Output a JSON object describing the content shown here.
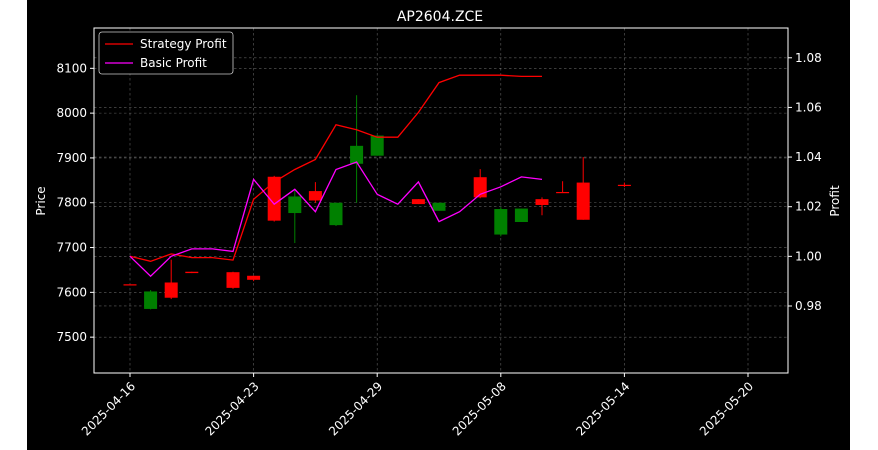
{
  "chart_data": {
    "type": "candlestick",
    "title": "AP2604.ZCE",
    "xlabel": "",
    "ylabel_left": "Price",
    "ylabel_right": "Profit",
    "ylim_left": [
      7420,
      8190
    ],
    "ylim_right": [
      0.953,
      1.092
    ],
    "yticks_left": [
      7500,
      7600,
      7700,
      7800,
      7900,
      8000,
      8100
    ],
    "yticks_right": [
      0.98,
      1.0,
      1.02,
      1.04,
      1.06,
      1.08
    ],
    "xticks": [
      {
        "index": 0,
        "label": "2025-04-16"
      },
      {
        "index": 6,
        "label": "2025-04-23"
      },
      {
        "index": 12,
        "label": "2025-04-29"
      },
      {
        "index": 18,
        "label": "2025-05-08"
      },
      {
        "index": 24,
        "label": "2025-05-14"
      },
      {
        "index": 30,
        "label": "2025-05-20"
      }
    ],
    "grid": true,
    "legend_position": "top-left",
    "up_color": "#ff0000",
    "down_color": "#008000",
    "candles": [
      {
        "o": 7618,
        "h": 7618,
        "l": 7618,
        "c": 7618
      },
      {
        "o": 7602,
        "h": 7605,
        "l": 7562,
        "c": 7563
      },
      {
        "o": 7588,
        "h": 7673,
        "l": 7585,
        "c": 7622
      },
      {
        "o": 7643,
        "h": 7646,
        "l": 7643,
        "c": 7646
      },
      {
        "o": 7610,
        "h": 7646,
        "l": 7608,
        "c": 7645
      },
      {
        "o": 7628,
        "h": 7637,
        "l": 7625,
        "c": 7637
      },
      {
        "o": 7760,
        "h": 7860,
        "l": 7758,
        "c": 7858
      },
      {
        "o": 7814,
        "h": 7830,
        "l": 7710,
        "c": 7777
      },
      {
        "o": 7805,
        "h": 7846,
        "l": 7800,
        "c": 7826
      },
      {
        "o": 7800,
        "h": 7800,
        "l": 7748,
        "c": 7750
      },
      {
        "o": 7927,
        "h": 8040,
        "l": 7800,
        "c": 7887
      },
      {
        "o": 7950,
        "h": 7950,
        "l": 7905,
        "c": 7905
      },
      {
        "o": 7797,
        "h": 7808,
        "l": 7797,
        "c": 7808
      },
      {
        "o": 7800,
        "h": 7800,
        "l": 7782,
        "c": 7782
      },
      {
        "o": 7812,
        "h": 7875,
        "l": 7810,
        "c": 7857
      },
      {
        "o": 7786,
        "h": 7790,
        "l": 7725,
        "c": 7729
      },
      {
        "o": 7787,
        "h": 7787,
        "l": 7757,
        "c": 7757
      },
      {
        "o": 7795,
        "h": 7812,
        "l": 7772,
        "c": 7808
      },
      {
        "o": 7822,
        "h": 7848,
        "l": 7822,
        "c": 7824
      },
      {
        "o": 7762,
        "h": 7902,
        "l": 7762,
        "c": 7845
      },
      {
        "o": 7838,
        "h": 7845,
        "l": 7835,
        "c": 7840
      }
    ],
    "candle_x_index": [
      0,
      1,
      2,
      3,
      5,
      6,
      7,
      8,
      9,
      10,
      11,
      12,
      14,
      15,
      17,
      18,
      19,
      20,
      21,
      22,
      24
    ],
    "series": [
      {
        "name": "Strategy Profit",
        "color": "#ff0000",
        "x_index": [
          0,
          1,
          2,
          3,
          4,
          5,
          6,
          7,
          8,
          9,
          10,
          11,
          12,
          13,
          14,
          15,
          16,
          17,
          18,
          19,
          20
        ],
        "values": [
          1.0,
          0.998,
          1.001,
          0.9995,
          0.9995,
          0.9985,
          1.023,
          1.03,
          1.035,
          1.039,
          1.053,
          1.051,
          1.048,
          1.048,
          1.058,
          1.07,
          1.073,
          1.073,
          1.073,
          1.0725,
          1.0725
        ]
      },
      {
        "name": "Basic Profit",
        "color": "#ff00ff",
        "x_index": [
          0,
          1,
          2,
          3,
          4,
          5,
          6,
          7,
          8,
          9,
          10,
          11,
          12,
          13,
          14,
          15,
          16,
          17,
          18,
          19,
          20
        ],
        "values": [
          1.0,
          0.992,
          1.0,
          1.003,
          1.003,
          1.002,
          1.031,
          1.021,
          1.027,
          1.018,
          1.035,
          1.038,
          1.025,
          1.021,
          1.03,
          1.014,
          1.018,
          1.025,
          1.028,
          1.032,
          1.031
        ]
      }
    ]
  }
}
